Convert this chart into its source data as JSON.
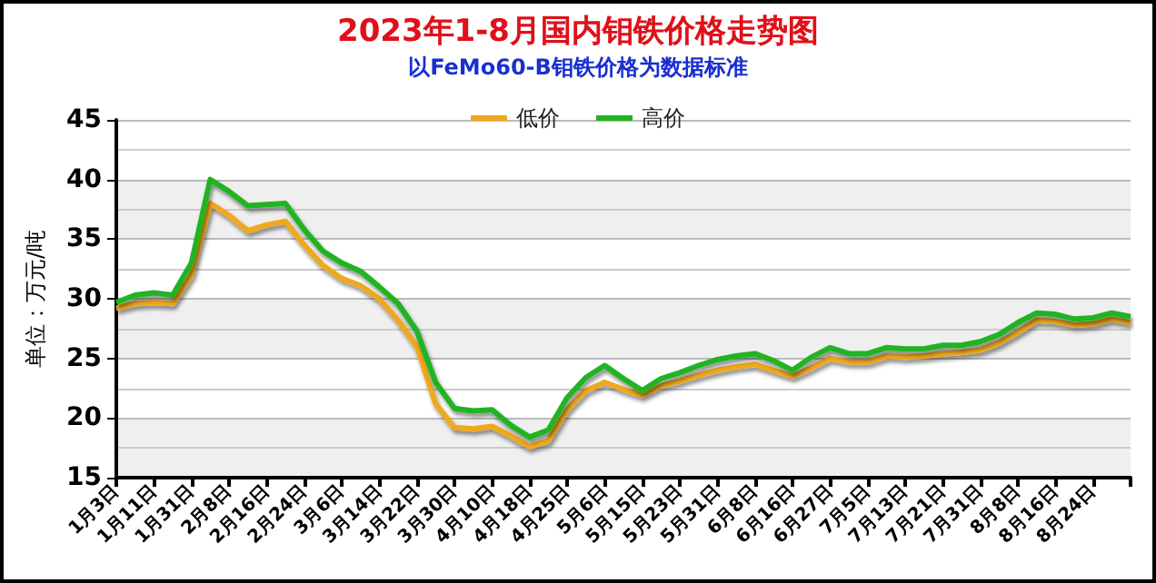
{
  "chart_data": {
    "type": "line",
    "title": "2023年1-8月国内钼铁价格走势图",
    "subtitle": "以FeMo60-B钼铁价格为数据标准",
    "ylabel": "单位：万元/吨",
    "categories": [
      "1月3日",
      null,
      "1月11日",
      null,
      "1月31日",
      null,
      "2月8日",
      null,
      "2月16日",
      null,
      "2月24日",
      null,
      "3月6日",
      null,
      "3月14日",
      null,
      "3月22日",
      null,
      "3月30日",
      null,
      "4月10日",
      null,
      "4月18日",
      null,
      "4月25日",
      null,
      "5月6日",
      null,
      "5月15日",
      null,
      "5月23日",
      null,
      "5月31日",
      null,
      "6月8日",
      null,
      "6月16日",
      null,
      "6月27日",
      null,
      "7月5日",
      null,
      "7月13日",
      null,
      "7月21日",
      null,
      "7月31日",
      null,
      "8月8日",
      null,
      "8月16日",
      null,
      "8月24日",
      null,
      null
    ],
    "series": [
      {
        "name": "低价",
        "color": "#f0a81e",
        "values": [
          29.2,
          29.6,
          29.7,
          29.6,
          32,
          38,
          37,
          35.7,
          36.2,
          36.5,
          34.5,
          32.8,
          31.7,
          31.1,
          30,
          28.2,
          26,
          21.2,
          19.2,
          19.1,
          19.3,
          18.5,
          17.6,
          18.1,
          20.7,
          22.3,
          23,
          22.4,
          21.9,
          22.7,
          23.1,
          23.6,
          24,
          24.3,
          24.5,
          24,
          23.5,
          24.2,
          25,
          24.7,
          24.7,
          25.2,
          25.1,
          25.2,
          25.4,
          25.5,
          25.7,
          26.3,
          27.2,
          28.2,
          28.1,
          27.8,
          27.9,
          28.3,
          28
        ]
      },
      {
        "name": "高价",
        "color": "#22b322",
        "values": [
          29.7,
          30.3,
          30.5,
          30.3,
          33,
          40,
          39,
          37.8,
          37.9,
          38,
          35.8,
          34,
          33,
          32.3,
          31,
          29.6,
          27.3,
          23,
          20.8,
          20.6,
          20.7,
          19.4,
          18.4,
          19,
          21.7,
          23.4,
          24.4,
          23.3,
          22.3,
          23.3,
          23.8,
          24.4,
          24.9,
          25.2,
          25.4,
          24.8,
          24,
          25.1,
          25.9,
          25.4,
          25.4,
          25.9,
          25.8,
          25.8,
          26.1,
          26.1,
          26.4,
          27,
          28,
          28.8,
          28.7,
          28.3,
          28.4,
          28.8,
          28.5
        ]
      }
    ],
    "ylim": [
      15,
      45
    ],
    "yticks": [
      15,
      20,
      25,
      30,
      35,
      40,
      45
    ],
    "grid": "y",
    "legend": "top",
    "marker": "none",
    "line_style": "solid"
  }
}
